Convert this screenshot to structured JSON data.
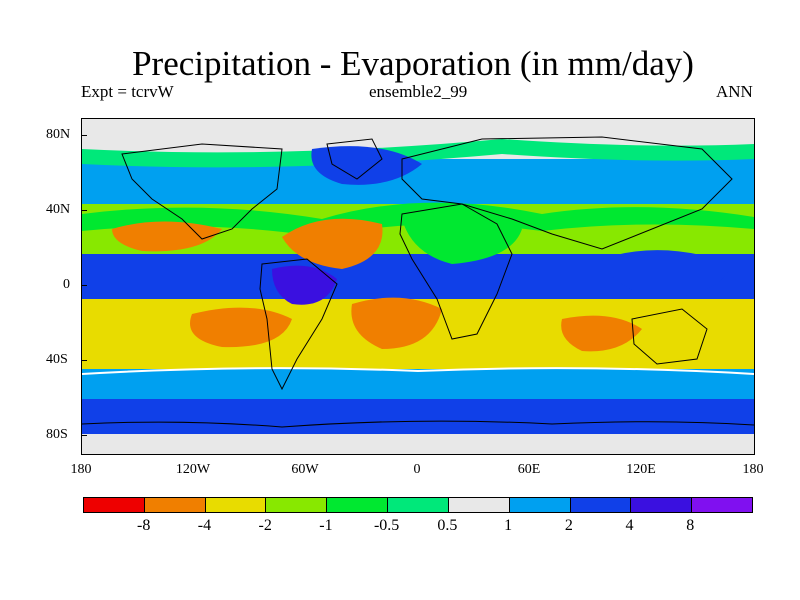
{
  "title": "Precipitation - Evaporation (in mm/day)",
  "subtitle_left": "Expt = tcrvW",
  "subtitle_center": "ensemble2_99",
  "subtitle_right": "ANN",
  "lat_labels": [
    "80N",
    "40N",
    "0",
    "40S",
    "80S"
  ],
  "lon_labels": [
    "180",
    "120W",
    "60W",
    "0",
    "60E",
    "120E",
    "180"
  ],
  "colorbar": {
    "colors": [
      "#ee0000",
      "#f07f00",
      "#e8dc00",
      "#88e800",
      "#00e830",
      "#00e87a",
      "#e8e8e8",
      "#00a0f0",
      "#1040e8",
      "#3a10e0",
      "#8010f0"
    ],
    "labels": [
      "-8",
      "-4",
      "-2",
      "-1",
      "-0.5",
      "0.5",
      "1",
      "2",
      "4",
      "8"
    ]
  }
}
